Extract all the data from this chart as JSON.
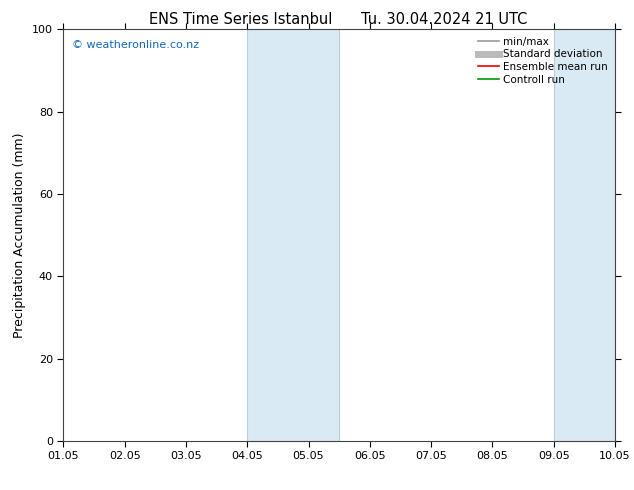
{
  "title_left": "ENS Time Series Istanbul",
  "title_right": "Tu. 30.04.2024 21 UTC",
  "ylabel": "Precipitation Accumulation (mm)",
  "ylim": [
    0,
    100
  ],
  "yticks": [
    0,
    20,
    40,
    60,
    80,
    100
  ],
  "xlim": [
    1,
    10
  ],
  "xtick_positions": [
    1,
    2,
    3,
    4,
    5,
    6,
    7,
    8,
    9,
    10
  ],
  "xtick_labels": [
    "01.05",
    "02.05",
    "03.05",
    "04.05",
    "05.05",
    "06.05",
    "07.05",
    "08.05",
    "09.05",
    "10.05"
  ],
  "shaded_bands": [
    {
      "x_start": 4.0,
      "x_end": 5.5
    },
    {
      "x_start": 9.0,
      "x_end": 10.0
    }
  ],
  "band_color": "#daeaf5",
  "band_edge_color": "#b8cedd",
  "watermark": "© weatheronline.co.nz",
  "watermark_color": "#1166bb",
  "legend_entries": [
    {
      "label": "min/max",
      "color": "#999999",
      "lw": 1.2
    },
    {
      "label": "Standard deviation",
      "color": "#bbbbbb",
      "lw": 5
    },
    {
      "label": "Ensemble mean run",
      "color": "#ee0000",
      "lw": 1.2
    },
    {
      "label": "Controll run",
      "color": "#009900",
      "lw": 1.2
    }
  ],
  "background_color": "#ffffff",
  "title_fontsize": 10.5,
  "axis_label_fontsize": 9,
  "tick_fontsize": 8,
  "watermark_fontsize": 8,
  "legend_fontsize": 7.5
}
